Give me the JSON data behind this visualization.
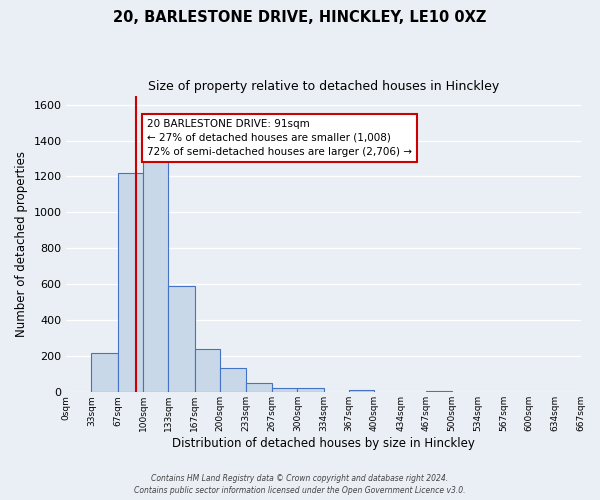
{
  "title": "20, BARLESTONE DRIVE, HINCKLEY, LE10 0XZ",
  "subtitle": "Size of property relative to detached houses in Hinckley",
  "xlabel": "Distribution of detached houses by size in Hinckley",
  "ylabel": "Number of detached properties",
  "bar_edges": [
    0,
    33,
    67,
    100,
    133,
    167,
    200,
    233,
    267,
    300,
    334,
    367,
    400,
    434,
    467,
    500,
    534,
    567,
    600,
    634,
    667
  ],
  "bar_heights": [
    0,
    220,
    1220,
    1295,
    590,
    240,
    135,
    50,
    25,
    25,
    0,
    10,
    0,
    0,
    5,
    0,
    0,
    0,
    0,
    0
  ],
  "bar_color": "#c8d8e8",
  "bar_edge_color": "#4472c4",
  "property_line_x": 91,
  "property_line_color": "#cc0000",
  "annotation_line1": "20 BARLESTONE DRIVE: 91sqm",
  "annotation_line2": "← 27% of detached houses are smaller (1,008)",
  "annotation_line3": "72% of semi-detached houses are larger (2,706) →",
  "annotation_box_color": "#ffffff",
  "annotation_box_edge": "#cc0000",
  "ylim": [
    0,
    1650
  ],
  "yticks": [
    0,
    200,
    400,
    600,
    800,
    1000,
    1200,
    1400,
    1600
  ],
  "tick_labels": [
    "0sqm",
    "33sqm",
    "67sqm",
    "100sqm",
    "133sqm",
    "167sqm",
    "200sqm",
    "233sqm",
    "267sqm",
    "300sqm",
    "334sqm",
    "367sqm",
    "400sqm",
    "434sqm",
    "467sqm",
    "500sqm",
    "534sqm",
    "567sqm",
    "600sqm",
    "634sqm",
    "667sqm"
  ],
  "background_color": "#eaeff5",
  "grid_color": "#ffffff",
  "footer_line1": "Contains HM Land Registry data © Crown copyright and database right 2024.",
  "footer_line2": "Contains public sector information licensed under the Open Government Licence v3.0."
}
